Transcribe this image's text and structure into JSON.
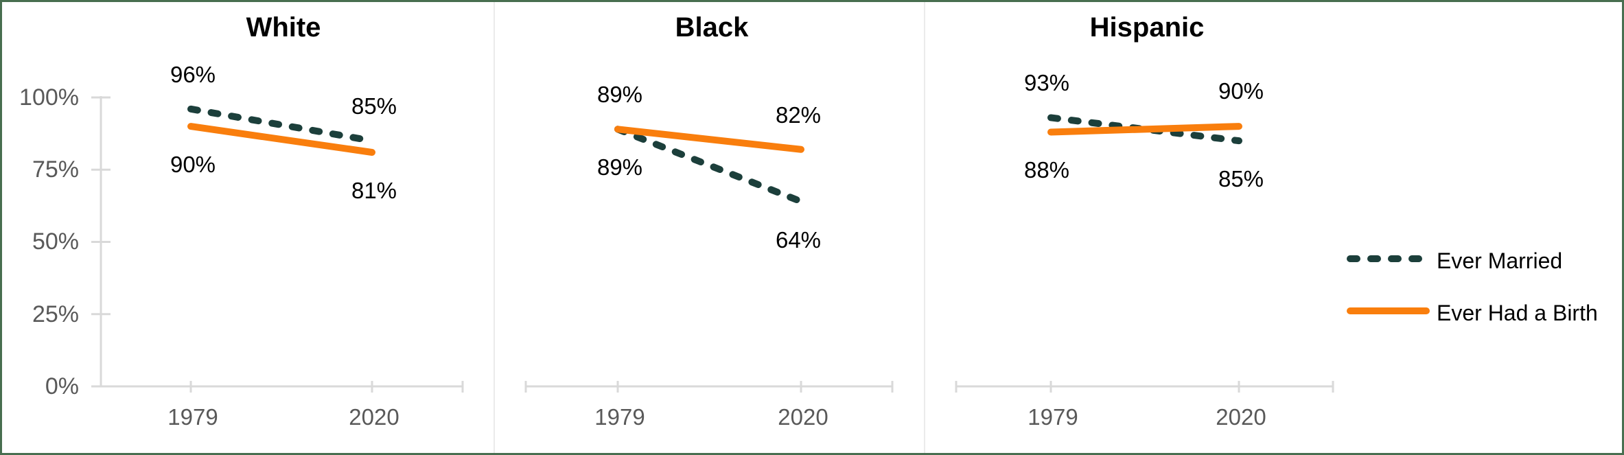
{
  "chart_data": {
    "type": "line",
    "categories": [
      "1979",
      "2020"
    ],
    "y_axis": {
      "tick_labels_top_to_bottom": [
        "100%",
        "75%",
        "50%",
        "25%",
        "0%"
      ],
      "min": 0,
      "max": 100,
      "grid": false
    },
    "panels": [
      {
        "title": "White",
        "series": [
          {
            "name": "Ever Married",
            "values": [
              96,
              85
            ],
            "labels": [
              "96%",
              "85%"
            ],
            "label_positions": [
              "above",
              "above"
            ]
          },
          {
            "name": "Ever Had a Birth",
            "values": [
              90,
              81
            ],
            "labels": [
              "90%",
              "81%"
            ],
            "label_positions": [
              "below",
              "below"
            ]
          }
        ]
      },
      {
        "title": "Black",
        "series": [
          {
            "name": "Ever Married",
            "values": [
              89,
              64
            ],
            "labels": [
              "89%",
              "64%"
            ],
            "label_positions": [
              "above",
              "below"
            ]
          },
          {
            "name": "Ever Had a Birth",
            "values": [
              89,
              82
            ],
            "labels": [
              "89%",
              "82%"
            ],
            "label_positions": [
              "below",
              "above"
            ]
          }
        ]
      },
      {
        "title": "Hispanic",
        "series": [
          {
            "name": "Ever Married",
            "values": [
              93,
              85
            ],
            "labels": [
              "93%",
              "85%"
            ],
            "label_positions": [
              "above",
              "below"
            ]
          },
          {
            "name": "Ever Had a Birth",
            "values": [
              88,
              90
            ],
            "labels": [
              "88%",
              "90%"
            ],
            "label_positions": [
              "below",
              "above"
            ]
          }
        ]
      }
    ],
    "series_styles": [
      {
        "name": "Ever Married",
        "color": "#1c3f3b",
        "line_style": "dashed"
      },
      {
        "name": "Ever Had a Birth",
        "color": "#f97e0d",
        "line_style": "solid"
      }
    ],
    "legend_position": "right",
    "legend": [
      {
        "label": "Ever Married"
      },
      {
        "label": "Ever Had a Birth"
      }
    ],
    "colors": {
      "axis": "#d9d9d9",
      "panel_separator": "#ebebeb",
      "tick_label": "#595959",
      "data_label": "#000000",
      "frame_border": "#486e50"
    }
  }
}
